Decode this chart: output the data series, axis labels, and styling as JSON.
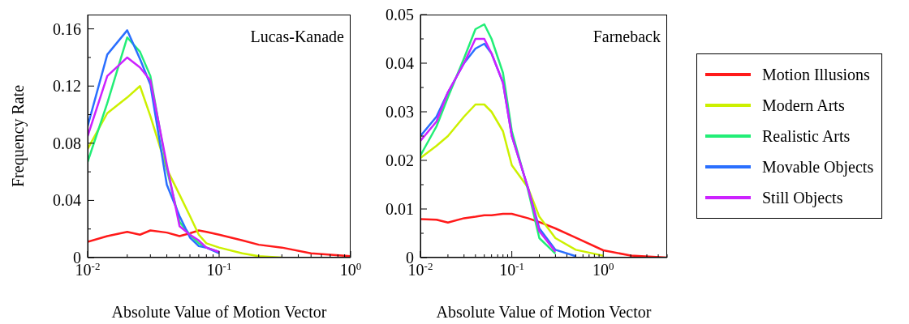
{
  "chart_data": [
    {
      "type": "line",
      "title": "Lucas-Kanade",
      "xlabel": "Absolute Value of Motion Vector",
      "ylabel": "Frequency Rate",
      "log": "x",
      "legend": false,
      "marker": "none",
      "grid": false,
      "x": [
        0.01,
        0.0141,
        0.02,
        0.025,
        0.03,
        0.04,
        0.05,
        0.06,
        0.07,
        0.08,
        0.1,
        0.15,
        0.2,
        0.3,
        0.5,
        1
      ],
      "xlim": [
        0.01,
        1
      ],
      "xticks": [
        {
          "value": 0.01,
          "label": "10$^{-2}$"
        },
        {
          "value": 0.02,
          "label": null
        },
        {
          "value": 0.03,
          "label": null
        },
        {
          "value": 0.04,
          "label": null
        },
        {
          "value": 0.05,
          "label": null
        },
        {
          "value": 0.06,
          "label": null
        },
        {
          "value": 0.07,
          "label": null
        },
        {
          "value": 0.08,
          "label": null
        },
        {
          "value": 0.09,
          "label": null
        },
        {
          "value": 0.1,
          "label": "10$^{-1}$"
        },
        {
          "value": 0.2,
          "label": null
        },
        {
          "value": 0.3,
          "label": null
        },
        {
          "value": 0.4,
          "label": null
        },
        {
          "value": 0.5,
          "label": null
        },
        {
          "value": 0.6,
          "label": null
        },
        {
          "value": 0.7,
          "label": null
        },
        {
          "value": 0.8,
          "label": null
        },
        {
          "value": 0.9,
          "label": null
        },
        {
          "value": 1,
          "label": "10$^{0}$"
        }
      ],
      "ylim": [
        0,
        0.17
      ],
      "yticks": [
        0,
        {
          "value": 0.02,
          "label": null
        },
        0.04,
        {
          "value": 0.06,
          "label": null
        },
        0.08,
        {
          "value": 0.1,
          "label": null
        },
        0.12,
        {
          "value": 0.14,
          "label": null
        },
        0.16
      ],
      "series": [
        {
          "color": "#ff1a1a",
          "values": [
            0.011,
            0.015,
            0.018,
            0.016,
            0.019,
            0.0175,
            0.015,
            0.017,
            0.019,
            0.018,
            0.016,
            0.012,
            0.009,
            0.007,
            0.003,
            0.001
          ]
        },
        {
          "color": "#ccf000",
          "values": [
            0.076,
            0.101,
            0.112,
            0.12,
            0.099,
            0.062,
            0.044,
            0.029,
            0.016,
            0.01,
            0.007,
            0.003,
            0.001,
            0,
            null,
            null
          ]
        },
        {
          "color": "#22ee77",
          "values": [
            0.067,
            0.108,
            0.154,
            0.144,
            0.127,
            0.062,
            0.025,
            0.016,
            0.01,
            0.007,
            0.004,
            null,
            null,
            null,
            null,
            null
          ]
        },
        {
          "color": "#2a6fff",
          "values": [
            0.092,
            0.142,
            0.159,
            0.139,
            0.121,
            0.051,
            0.029,
            0.014,
            0.008,
            0.007,
            0.003,
            null,
            null,
            null,
            null,
            null
          ]
        },
        {
          "color": "#cc22ff",
          "values": [
            0.085,
            0.127,
            0.14,
            0.133,
            0.124,
            0.065,
            0.022,
            0.016,
            0.012,
            0.007,
            0.004,
            null,
            null,
            null,
            null,
            null
          ]
        }
      ]
    },
    {
      "type": "line",
      "title": "Farneback",
      "xlabel": "Absolute Value of Motion Vector",
      "log": "x",
      "legend": "right",
      "marker": "none",
      "grid": false,
      "x": [
        0.01,
        0.015,
        0.02,
        0.03,
        0.04,
        0.05,
        0.06,
        0.08,
        0.1,
        0.15,
        0.2,
        0.3,
        0.5,
        1,
        2,
        5
      ],
      "xlim": [
        0.01,
        5
      ],
      "xticks": [
        {
          "value": 0.01,
          "label": "10$^{-2}$"
        },
        {
          "value": 0.02,
          "label": null
        },
        {
          "value": 0.03,
          "label": null
        },
        {
          "value": 0.04,
          "label": null
        },
        {
          "value": 0.05,
          "label": null
        },
        {
          "value": 0.06,
          "label": null
        },
        {
          "value": 0.07,
          "label": null
        },
        {
          "value": 0.08,
          "label": null
        },
        {
          "value": 0.09,
          "label": null
        },
        {
          "value": 0.1,
          "label": "10$^{-1}$"
        },
        {
          "value": 0.2,
          "label": null
        },
        {
          "value": 0.3,
          "label": null
        },
        {
          "value": 0.4,
          "label": null
        },
        {
          "value": 0.5,
          "label": null
        },
        {
          "value": 0.6,
          "label": null
        },
        {
          "value": 0.7,
          "label": null
        },
        {
          "value": 0.8,
          "label": null
        },
        {
          "value": 0.9,
          "label": null
        },
        {
          "value": 1,
          "label": "10$^{0}$"
        },
        {
          "value": 2,
          "label": null
        },
        {
          "value": 3,
          "label": null
        },
        {
          "value": 4,
          "label": null
        },
        {
          "value": 5,
          "label": null
        }
      ],
      "ylim": [
        0,
        0.05
      ],
      "yticks": [
        0,
        {
          "value": 0.005,
          "label": null
        },
        0.01,
        {
          "value": 0.015,
          "label": null
        },
        0.02,
        {
          "value": 0.025,
          "label": null
        },
        0.03,
        {
          "value": 0.035,
          "label": null
        },
        0.04,
        {
          "value": 0.045,
          "label": null
        },
        0.05
      ],
      "series": [
        {
          "name": "Motion Illusions",
          "color": "#ff1a1a",
          "values": [
            0.0079,
            0.0078,
            0.0072,
            0.0081,
            0.0084,
            0.0087,
            0.0087,
            0.009,
            0.009,
            0.0081,
            0.0073,
            0.006,
            0.0041,
            0.0015,
            0.0004,
            0
          ]
        },
        {
          "name": "Modern Arts",
          "color": "#ccf000",
          "values": [
            0.0205,
            0.023,
            0.025,
            0.029,
            0.0315,
            0.0315,
            0.03,
            0.026,
            0.019,
            0.0144,
            0.0084,
            0.004,
            0.0016,
            0.0004,
            null,
            null
          ]
        },
        {
          "name": "Realistic Arts",
          "color": "#22ee77",
          "values": [
            0.021,
            0.027,
            0.033,
            0.041,
            0.047,
            0.048,
            0.045,
            0.038,
            0.026,
            0.014,
            0.004,
            0.0008,
            null,
            null,
            null,
            null
          ]
        },
        {
          "name": "Movable Objects",
          "color": "#2a6fff",
          "values": [
            0.025,
            0.029,
            0.034,
            0.04,
            0.043,
            0.044,
            0.042,
            0.036,
            0.025,
            0.0144,
            0.006,
            0.0016,
            0.0003,
            null,
            null,
            null
          ]
        },
        {
          "name": "Still Objects",
          "color": "#cc22ff",
          "values": [
            0.024,
            0.028,
            0.034,
            0.04,
            0.045,
            0.045,
            0.042,
            0.036,
            0.025,
            0.0144,
            0.0054,
            0.0012,
            null,
            null,
            null,
            null
          ]
        }
      ]
    }
  ]
}
